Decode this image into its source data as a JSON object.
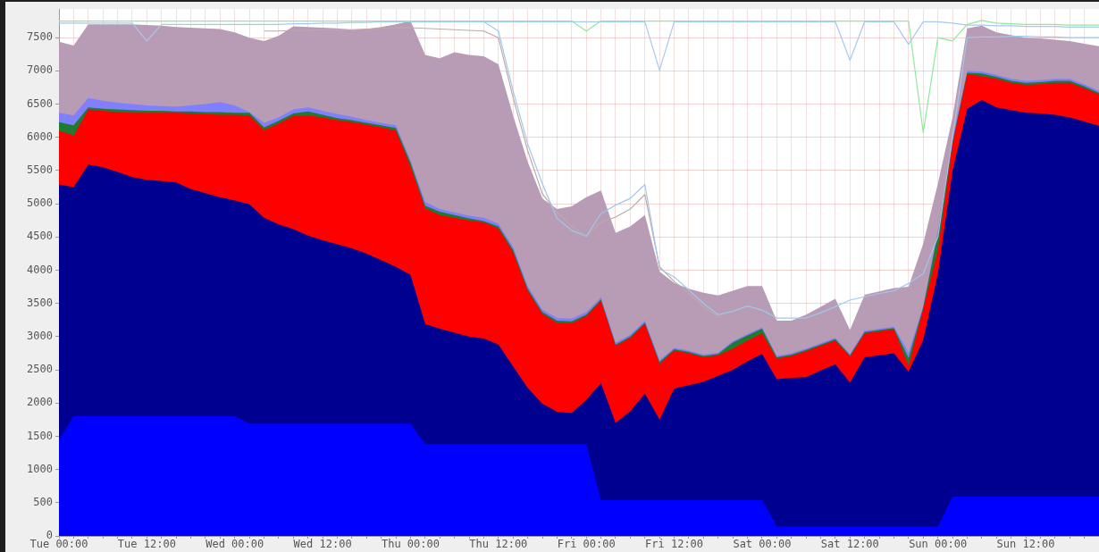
{
  "chart_data": {
    "type": "area",
    "ylim": [
      0,
      7930
    ],
    "categories": [
      "Tue 00:00",
      null,
      null,
      null,
      null,
      null,
      "Tue 12:00",
      null,
      null,
      null,
      null,
      null,
      "Wed 00:00",
      null,
      null,
      null,
      null,
      null,
      "Wed 12:00",
      null,
      null,
      null,
      null,
      null,
      "Thu 00:00",
      null,
      null,
      null,
      null,
      null,
      "Thu 12:00",
      null,
      null,
      null,
      null,
      null,
      "Fri 00:00",
      null,
      null,
      null,
      null,
      null,
      "Fri 12:00",
      null,
      null,
      null,
      null,
      null,
      "Sat 00:00",
      null,
      null,
      null,
      null,
      null,
      "Sat 12:00",
      null,
      null,
      null,
      null,
      null,
      "Sun 00:00",
      null,
      null,
      null,
      null,
      null,
      "Sun 12:00",
      null,
      null,
      null,
      null,
      null
    ],
    "yticks": [
      0,
      500,
      1000,
      1500,
      2000,
      2500,
      3000,
      3500,
      4000,
      4500,
      5000,
      5500,
      6000,
      6500,
      7000,
      7500
    ],
    "grid": true,
    "series": [
      {
        "color": "#b89bb4",
        "values": [
          7440,
          7380,
          7700,
          7700,
          7700,
          7700,
          7690,
          7680,
          7660,
          7650,
          7640,
          7630,
          7580,
          7500,
          7450,
          7530,
          7670,
          7660,
          7650,
          7640,
          7620,
          7630,
          7660,
          7700,
          7750,
          7240,
          7190,
          7280,
          7240,
          7220,
          7100,
          6330,
          5630,
          5080,
          4920,
          4960,
          5100,
          5200,
          4560,
          4660,
          4830,
          3980,
          3810,
          3720,
          3660,
          3620,
          3690,
          3760,
          3760,
          3240,
          3240,
          3330,
          3450,
          3570,
          3100,
          3630,
          3680,
          3730,
          3750,
          4400,
          5300,
          6300,
          7640,
          7680,
          7580,
          7540,
          7500,
          7490,
          7470,
          7450,
          7410,
          7370
        ]
      },
      {
        "color": "#8080ff",
        "values": [
          6370,
          6330,
          6590,
          6550,
          6520,
          6500,
          6480,
          6470,
          6460,
          6480,
          6500,
          6530,
          6480,
          6380,
          6220,
          6300,
          6420,
          6450,
          6400,
          6350,
          6310,
          6260,
          6220,
          6180,
          5650,
          5030,
          4920,
          4870,
          4820,
          4790,
          4700,
          4350,
          3760,
          3410,
          3280,
          3270,
          3370,
          3590,
          2910,
          3030,
          3240,
          2650,
          2830,
          2790,
          2730,
          2760,
          2930,
          3040,
          3140,
          2710,
          2750,
          2820,
          2900,
          2980,
          2740,
          3090,
          3120,
          3150,
          2760,
          3460,
          4600,
          5980,
          7000,
          6990,
          6940,
          6880,
          6850,
          6860,
          6880,
          6880,
          6800,
          6700
        ]
      },
      {
        "color": "#1e7b32",
        "values": [
          6230,
          6180,
          6450,
          6430,
          6420,
          6410,
          6400,
          6400,
          6390,
          6390,
          6380,
          6380,
          6370,
          6370,
          6150,
          6250,
          6360,
          6390,
          6340,
          6290,
          6260,
          6220,
          6180,
          6140,
          5620,
          4970,
          4880,
          4830,
          4780,
          4740,
          4660,
          4310,
          3720,
          3370,
          3240,
          3230,
          3330,
          3560,
          2880,
          3000,
          3210,
          2620,
          2810,
          2770,
          2710,
          2740,
          2910,
          3020,
          3120,
          2690,
          2730,
          2800,
          2880,
          2960,
          2720,
          3070,
          3100,
          3130,
          2680,
          3440,
          4560,
          5930,
          6970,
          6960,
          6910,
          6850,
          6820,
          6830,
          6850,
          6850,
          6770,
          6670
        ]
      },
      {
        "color": "#ff0000",
        "values": [
          6100,
          6030,
          6420,
          6400,
          6380,
          6370,
          6370,
          6370,
          6370,
          6360,
          6350,
          6340,
          6340,
          6330,
          6110,
          6210,
          6320,
          6330,
          6300,
          6260,
          6230,
          6190,
          6150,
          6100,
          5560,
          4930,
          4830,
          4790,
          4750,
          4720,
          4630,
          4270,
          3690,
          3340,
          3210,
          3200,
          3310,
          3540,
          2860,
          2980,
          3190,
          2590,
          2790,
          2750,
          2690,
          2720,
          2820,
          2940,
          3050,
          2670,
          2710,
          2780,
          2860,
          2940,
          2700,
          3050,
          3080,
          3110,
          2560,
          3420,
          4300,
          5900,
          6950,
          6920,
          6880,
          6820,
          6790,
          6800,
          6820,
          6820,
          6740,
          6650
        ]
      },
      {
        "color": "#000090",
        "values": [
          5290,
          5250,
          5590,
          5550,
          5480,
          5400,
          5360,
          5340,
          5320,
          5220,
          5160,
          5100,
          5050,
          4990,
          4790,
          4690,
          4620,
          4520,
          4450,
          4390,
          4330,
          4250,
          4150,
          4050,
          3930,
          3190,
          3120,
          3060,
          3000,
          2970,
          2880,
          2550,
          2230,
          1990,
          1870,
          1850,
          2050,
          2300,
          1700,
          1880,
          2140,
          1750,
          2220,
          2270,
          2320,
          2410,
          2500,
          2630,
          2740,
          2360,
          2380,
          2390,
          2490,
          2580,
          2310,
          2690,
          2720,
          2750,
          2470,
          2950,
          3950,
          5500,
          6430,
          6560,
          6450,
          6410,
          6370,
          6360,
          6340,
          6300,
          6240,
          6170
        ]
      },
      {
        "color": "#0000ff",
        "values": [
          1450,
          1800,
          1800,
          1800,
          1800,
          1800,
          1800,
          1800,
          1800,
          1800,
          1800,
          1800,
          1800,
          1690,
          1690,
          1690,
          1690,
          1690,
          1690,
          1690,
          1690,
          1690,
          1690,
          1690,
          1690,
          1380,
          1380,
          1380,
          1380,
          1380,
          1380,
          1380,
          1380,
          1380,
          1380,
          1380,
          1380,
          540,
          540,
          540,
          540,
          540,
          540,
          540,
          540,
          540,
          540,
          540,
          540,
          140,
          140,
          140,
          140,
          140,
          140,
          140,
          140,
          140,
          140,
          140,
          140,
          590,
          590,
          590,
          590,
          590,
          590,
          590,
          590,
          590,
          590,
          590
        ]
      },
      {
        "type": "line",
        "color": "#c0a8a8",
        "values": [
          null,
          null,
          null,
          null,
          null,
          null,
          null,
          null,
          null,
          null,
          null,
          null,
          null,
          null,
          7600,
          7600,
          7610,
          7610,
          7620,
          7620,
          7620,
          7630,
          7640,
          7650,
          7650,
          7640,
          7630,
          7620,
          7610,
          7600,
          7500,
          6600,
          5800,
          5150,
          4870,
          4660,
          4510,
          4720,
          4800,
          4920,
          5140,
          4050,
          3830,
          3650,
          3450,
          3300,
          null,
          null,
          null,
          null,
          null,
          null,
          null,
          null,
          null,
          null,
          null,
          null,
          null,
          null,
          null,
          null,
          null,
          null,
          null,
          null,
          null,
          null,
          null,
          null,
          null,
          null
        ]
      },
      {
        "type": "line",
        "color": "#a0c8ec",
        "values": [
          null,
          null,
          null,
          null,
          null,
          null,
          null,
          null,
          null,
          null,
          null,
          null,
          null,
          null,
          null,
          null,
          null,
          null,
          null,
          null,
          null,
          null,
          null,
          null,
          7750,
          7750,
          7750,
          7750,
          7750,
          7740,
          7600,
          6700,
          5900,
          5300,
          4780,
          4600,
          4510,
          4850,
          4980,
          5080,
          5290,
          4020,
          3900,
          3700,
          3500,
          3330,
          3380,
          3460,
          3400,
          3280,
          3280,
          3280,
          3360,
          3450,
          3550,
          3600,
          3650,
          3690,
          3800,
          3950,
          4500,
          6000,
          7500,
          7510,
          7510,
          7520,
          7520,
          7510,
          7510,
          7500,
          7500,
          7500
        ]
      },
      {
        "type": "line",
        "color": "#a8c8f0",
        "values": [
          7720,
          7720,
          7720,
          7720,
          7720,
          7720,
          7450,
          7700,
          7700,
          7700,
          7700,
          7700,
          7700,
          7700,
          7700,
          7700,
          7710,
          7710,
          7720,
          7720,
          7730,
          7730,
          7740,
          7740,
          7740,
          7740,
          7740,
          7740,
          7740,
          7740,
          7740,
          7740,
          7740,
          7740,
          7740,
          7740,
          7740,
          7740,
          7740,
          7740,
          7740,
          7010,
          7740,
          7740,
          7740,
          7740,
          7740,
          7740,
          7740,
          7740,
          7740,
          7740,
          7740,
          7740,
          7160,
          7740,
          7740,
          7740,
          7400,
          7740,
          7740,
          7720,
          7690,
          7690,
          7680,
          7680,
          7670,
          7670,
          7670,
          7660,
          7660,
          7660
        ]
      },
      {
        "type": "line",
        "color": "#90e8a0",
        "values": [
          7750,
          7750,
          7750,
          7750,
          7750,
          7750,
          7750,
          7750,
          7750,
          7750,
          7750,
          7750,
          7750,
          7750,
          7750,
          7750,
          7750,
          7750,
          7750,
          7750,
          7750,
          7750,
          7750,
          7750,
          7750,
          7750,
          7750,
          7750,
          7750,
          7750,
          7750,
          7750,
          7750,
          7750,
          7750,
          7750,
          7600,
          7750,
          7750,
          7750,
          7750,
          7750,
          7750,
          7750,
          7750,
          7750,
          7750,
          7750,
          7750,
          7750,
          7750,
          7750,
          7750,
          7750,
          7750,
          7750,
          7750,
          7750,
          7750,
          6070,
          7500,
          7450,
          7700,
          7760,
          7720,
          7710,
          7700,
          7700,
          7700,
          7690,
          7690,
          7690
        ]
      }
    ]
  }
}
